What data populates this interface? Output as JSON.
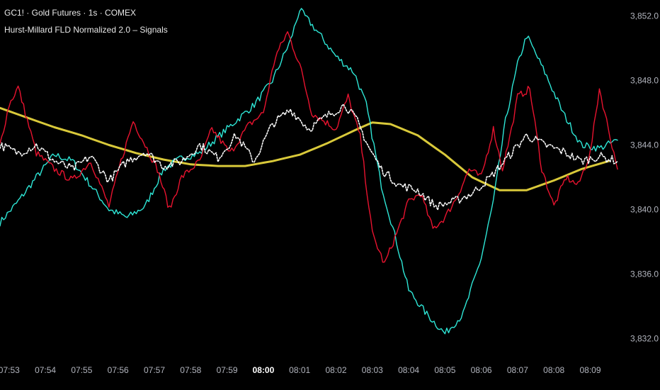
{
  "legend": {
    "symbol_line": "GC1! · Gold Futures · 1s · COMEX",
    "indicator_line": "Hurst-Millard FLD Normalized 2.0 – Signals"
  },
  "colors": {
    "background": "#000000",
    "price": "#ffffff",
    "cyan_series": "#2ee6d6",
    "red_series": "#e8132f",
    "yellow_series": "#d9c93a",
    "axis_text": "#b2b5be"
  },
  "chart_data": {
    "type": "line",
    "ylim": [
      3831.0,
      3853.0
    ],
    "y_ticks": [
      3852.0,
      3848.0,
      3844.0,
      3840.0,
      3836.0,
      3832.0
    ],
    "y_tick_labels": [
      "3,852.0",
      "3,848.0",
      "3,844.0",
      "3,840.0",
      "3,836.0",
      "3,832.0"
    ],
    "x_range": [
      "07:52:45",
      "08:09:45"
    ],
    "x_ticks": [
      {
        "label": "07:53",
        "t": "07:53",
        "bold": false
      },
      {
        "label": "07:54",
        "t": "07:54",
        "bold": false
      },
      {
        "label": "07:55",
        "t": "07:55",
        "bold": false
      },
      {
        "label": "07:56",
        "t": "07:56",
        "bold": false
      },
      {
        "label": "07:57",
        "t": "07:57",
        "bold": false
      },
      {
        "label": "07:58",
        "t": "07:58",
        "bold": false
      },
      {
        "label": "07:59",
        "t": "07:59",
        "bold": false
      },
      {
        "label": "08:00",
        "t": "08:00",
        "bold": true
      },
      {
        "label": "08:01",
        "t": "08:01",
        "bold": false
      },
      {
        "label": "08:02",
        "t": "08:02",
        "bold": false
      },
      {
        "label": "08:03",
        "t": "08:03",
        "bold": false
      },
      {
        "label": "08:04",
        "t": "08:04",
        "bold": false
      },
      {
        "label": "08:05",
        "t": "08:05",
        "bold": false
      },
      {
        "label": "08:06",
        "t": "08:06",
        "bold": false
      },
      {
        "label": "08:07",
        "t": "08:07",
        "bold": false
      },
      {
        "label": "08:08",
        "t": "08:08",
        "bold": false
      },
      {
        "label": "08:09",
        "t": "08:09",
        "bold": false
      }
    ],
    "series": [
      {
        "key": "yellow",
        "style": "thick",
        "points": [
          [
            "07:52:45",
            3846.3
          ],
          [
            "07:53:30",
            3845.7
          ],
          [
            "07:54:15",
            3845.1
          ],
          [
            "07:55:00",
            3844.6
          ],
          [
            "07:55:45",
            3844.0
          ],
          [
            "07:56:30",
            3843.5
          ],
          [
            "07:57:15",
            3843.1
          ],
          [
            "07:58:00",
            3842.8
          ],
          [
            "07:58:45",
            3842.7
          ],
          [
            "07:59:30",
            3842.7
          ],
          [
            "08:00:15",
            3843.0
          ],
          [
            "08:01:00",
            3843.4
          ],
          [
            "08:01:45",
            3844.1
          ],
          [
            "08:02:30",
            3844.9
          ],
          [
            "08:03:00",
            3845.4
          ],
          [
            "08:03:30",
            3845.3
          ],
          [
            "08:04:15",
            3844.6
          ],
          [
            "08:05:00",
            3843.4
          ],
          [
            "08:05:45",
            3842.0
          ],
          [
            "08:06:30",
            3841.2
          ],
          [
            "08:07:15",
            3841.2
          ],
          [
            "08:08:00",
            3841.8
          ],
          [
            "08:08:45",
            3842.5
          ],
          [
            "08:09:30",
            3843.0
          ]
        ]
      },
      {
        "key": "cyan",
        "style": "jagged",
        "points": [
          [
            "07:52:45",
            3839.2
          ],
          [
            "07:53:15",
            3840.5
          ],
          [
            "07:53:45",
            3842.0
          ],
          [
            "07:54:15",
            3843.4
          ],
          [
            "07:54:45",
            3843.0
          ],
          [
            "07:55:15",
            3841.5
          ],
          [
            "07:55:45",
            3840.0
          ],
          [
            "07:56:15",
            3839.5
          ],
          [
            "07:56:45",
            3840.2
          ],
          [
            "07:57:15",
            3842.5
          ],
          [
            "07:57:45",
            3843.2
          ],
          [
            "07:58:15",
            3843.5
          ],
          [
            "07:58:45",
            3844.5
          ],
          [
            "07:59:15",
            3845.5
          ],
          [
            "07:59:45",
            3846.5
          ],
          [
            "08:00:15",
            3848.0
          ],
          [
            "08:00:45",
            3850.5
          ],
          [
            "08:01:00",
            3852.4
          ],
          [
            "08:01:30",
            3851.0
          ],
          [
            "08:02:00",
            3849.5
          ],
          [
            "08:02:30",
            3848.5
          ],
          [
            "08:02:50",
            3846.5
          ],
          [
            "08:03:15",
            3841.5
          ],
          [
            "08:03:40",
            3838.0
          ],
          [
            "08:04:00",
            3835.0
          ],
          [
            "08:04:30",
            3833.5
          ],
          [
            "08:05:00",
            3832.3
          ],
          [
            "08:05:30",
            3833.5
          ],
          [
            "08:06:00",
            3837.0
          ],
          [
            "08:06:20",
            3840.5
          ],
          [
            "08:06:40",
            3845.5
          ],
          [
            "08:07:00",
            3849.0
          ],
          [
            "08:07:15",
            3850.8
          ],
          [
            "08:07:45",
            3848.5
          ],
          [
            "08:08:15",
            3846.0
          ],
          [
            "08:08:45",
            3844.0
          ],
          [
            "08:09:15",
            3843.8
          ],
          [
            "08:09:45",
            3844.3
          ]
        ]
      },
      {
        "key": "red",
        "style": "jagged",
        "points": [
          [
            "07:52:45",
            3844.0
          ],
          [
            "07:53:00",
            3846.5
          ],
          [
            "07:53:15",
            3847.6
          ],
          [
            "07:53:45",
            3843.5
          ],
          [
            "07:54:15",
            3842.5
          ],
          [
            "07:54:45",
            3841.8
          ],
          [
            "07:55:15",
            3843.0
          ],
          [
            "07:55:45",
            3840.2
          ],
          [
            "07:56:05",
            3843.0
          ],
          [
            "07:56:25",
            3845.5
          ],
          [
            "07:56:45",
            3844.0
          ],
          [
            "07:57:05",
            3842.5
          ],
          [
            "07:57:25",
            3840.0
          ],
          [
            "07:57:45",
            3842.0
          ],
          [
            "07:58:15",
            3843.0
          ],
          [
            "07:58:35",
            3845.0
          ],
          [
            "07:59:05",
            3843.5
          ],
          [
            "07:59:35",
            3845.2
          ],
          [
            "08:00:00",
            3846.0
          ],
          [
            "08:00:20",
            3849.5
          ],
          [
            "08:00:40",
            3851.0
          ],
          [
            "08:01:00",
            3849.0
          ],
          [
            "08:01:20",
            3846.0
          ],
          [
            "08:01:40",
            3845.5
          ],
          [
            "08:02:00",
            3845.0
          ],
          [
            "08:02:20",
            3847.0
          ],
          [
            "08:02:40",
            3844.5
          ],
          [
            "08:03:00",
            3838.5
          ],
          [
            "08:03:20",
            3836.6
          ],
          [
            "08:03:40",
            3838.5
          ],
          [
            "08:04:00",
            3840.5
          ],
          [
            "08:04:20",
            3841.0
          ],
          [
            "08:04:40",
            3838.8
          ],
          [
            "08:05:00",
            3839.5
          ],
          [
            "08:05:20",
            3840.8
          ],
          [
            "08:05:40",
            3842.5
          ],
          [
            "08:06:00",
            3842.0
          ],
          [
            "08:06:20",
            3845.0
          ],
          [
            "08:06:35",
            3842.5
          ],
          [
            "08:06:50",
            3845.0
          ],
          [
            "08:07:00",
            3847.0
          ],
          [
            "08:07:20",
            3847.5
          ],
          [
            "08:07:40",
            3842.5
          ],
          [
            "08:08:00",
            3840.2
          ],
          [
            "08:08:20",
            3842.0
          ],
          [
            "08:08:40",
            3841.5
          ],
          [
            "08:09:00",
            3843.5
          ],
          [
            "08:09:15",
            3847.5
          ],
          [
            "08:09:30",
            3845.0
          ],
          [
            "08:09:45",
            3842.5
          ]
        ]
      },
      {
        "key": "price",
        "style": "dotted",
        "points": [
          [
            "07:52:45",
            3844.0
          ],
          [
            "07:53:15",
            3843.5
          ],
          [
            "07:53:45",
            3844.0
          ],
          [
            "07:54:15",
            3843.0
          ],
          [
            "07:54:45",
            3842.5
          ],
          [
            "07:55:15",
            3843.3
          ],
          [
            "07:55:45",
            3841.8
          ],
          [
            "07:56:15",
            3843.0
          ],
          [
            "07:56:45",
            3843.6
          ],
          [
            "07:57:15",
            3842.7
          ],
          [
            "07:57:45",
            3843.0
          ],
          [
            "07:58:15",
            3844.0
          ],
          [
            "07:58:45",
            3843.2
          ],
          [
            "07:59:15",
            3844.6
          ],
          [
            "07:59:45",
            3843.0
          ],
          [
            "08:00:15",
            3845.3
          ],
          [
            "08:00:45",
            3846.2
          ],
          [
            "08:01:15",
            3845.0
          ],
          [
            "08:01:45",
            3845.8
          ],
          [
            "08:02:15",
            3846.5
          ],
          [
            "08:02:35",
            3845.5
          ],
          [
            "08:02:55",
            3843.8
          ],
          [
            "08:03:15",
            3842.5
          ],
          [
            "08:03:45",
            3841.5
          ],
          [
            "08:04:15",
            3841.2
          ],
          [
            "08:04:45",
            3840.2
          ],
          [
            "08:05:15",
            3840.5
          ],
          [
            "08:05:45",
            3841.0
          ],
          [
            "08:06:15",
            3842.0
          ],
          [
            "08:06:45",
            3843.3
          ],
          [
            "08:07:15",
            3844.6
          ],
          [
            "08:07:45",
            3844.0
          ],
          [
            "08:08:15",
            3843.6
          ],
          [
            "08:08:45",
            3843.0
          ],
          [
            "08:09:15",
            3843.3
          ],
          [
            "08:09:45",
            3843.0
          ]
        ]
      }
    ]
  }
}
